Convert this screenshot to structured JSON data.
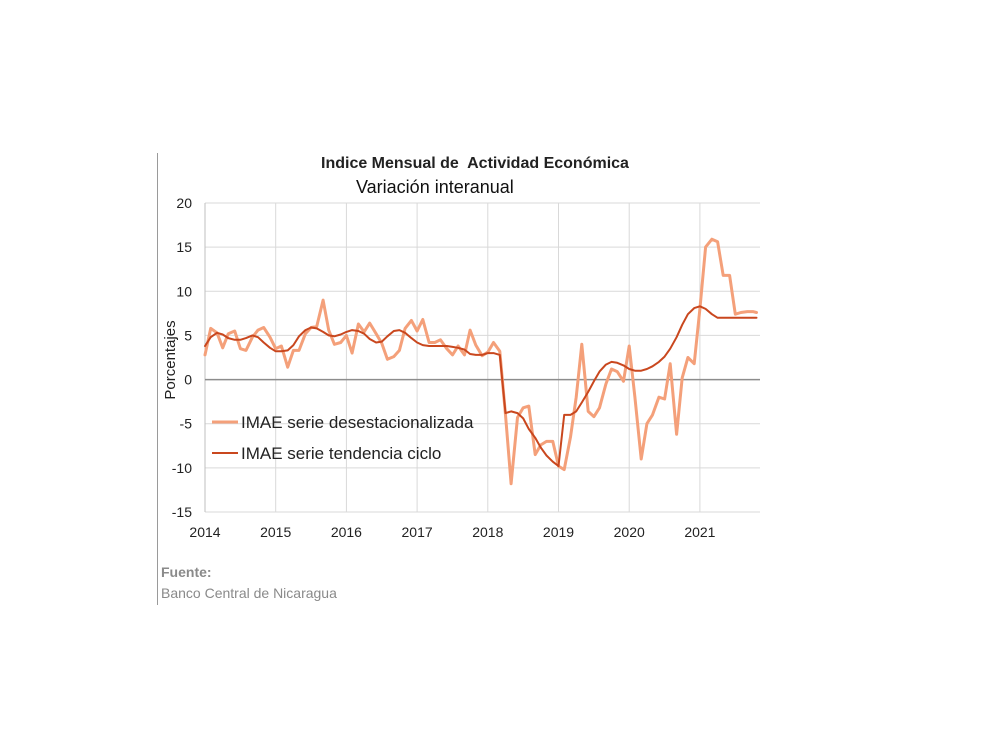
{
  "chart_data": {
    "type": "line",
    "title": "Indice Mensual de  Actividad Económica",
    "subtitle": "Variación interanual",
    "ylabel": "Porcentajes",
    "xlabel": "",
    "ylim": [
      -15,
      20
    ],
    "xlim": [
      2014.0,
      2021.85
    ],
    "yticks": [
      -15,
      -10,
      -5,
      0,
      5,
      10,
      15,
      20
    ],
    "xticks": [
      2014,
      2015,
      2016,
      2017,
      2018,
      2019,
      2020,
      2021
    ],
    "grid": "horizontal",
    "legend_position": "left-middle",
    "series": [
      {
        "name": "IMAE serie desestacionalizada",
        "color": "#f4a07a",
        "x": [
          2014.0,
          2014.08,
          2014.17,
          2014.25,
          2014.33,
          2014.42,
          2014.5,
          2014.58,
          2014.67,
          2014.75,
          2014.83,
          2014.92,
          2015.0,
          2015.08,
          2015.17,
          2015.25,
          2015.33,
          2015.42,
          2015.5,
          2015.58,
          2015.67,
          2015.75,
          2015.83,
          2015.92,
          2016.0,
          2016.08,
          2016.17,
          2016.25,
          2016.33,
          2016.42,
          2016.5,
          2016.58,
          2016.67,
          2016.75,
          2016.83,
          2016.92,
          2017.0,
          2017.08,
          2017.17,
          2017.25,
          2017.33,
          2017.42,
          2017.5,
          2017.58,
          2017.67,
          2017.75,
          2017.83,
          2017.92,
          2018.0,
          2018.08,
          2018.17,
          2018.25,
          2018.33,
          2018.42,
          2018.5,
          2018.58,
          2018.67,
          2018.75,
          2018.83,
          2018.92,
          2019.0,
          2019.08,
          2019.17,
          2019.25,
          2019.33,
          2019.42,
          2019.5,
          2019.58,
          2019.67,
          2019.75,
          2019.83,
          2019.92,
          2020.0,
          2020.08,
          2020.17,
          2020.25,
          2020.33,
          2020.42,
          2020.5,
          2020.58,
          2020.67,
          2020.75,
          2020.83,
          2020.92,
          2021.0,
          2021.08,
          2021.17,
          2021.25,
          2021.33,
          2021.42,
          2021.5,
          2021.58,
          2021.67,
          2021.75,
          2021.8
        ],
        "values": [
          2.8,
          5.8,
          5.3,
          3.6,
          5.2,
          5.5,
          3.5,
          3.3,
          4.8,
          5.6,
          5.9,
          4.8,
          3.5,
          3.8,
          1.4,
          3.3,
          3.3,
          5.2,
          5.9,
          6.0,
          9.0,
          5.6,
          4.0,
          4.2,
          5.0,
          3.0,
          6.3,
          5.4,
          6.4,
          5.2,
          4.1,
          2.3,
          2.6,
          3.3,
          5.8,
          6.7,
          5.5,
          6.8,
          4.2,
          4.2,
          4.5,
          3.5,
          2.8,
          3.8,
          2.8,
          5.6,
          3.9,
          2.7,
          3.1,
          4.2,
          3.2,
          -4.0,
          -11.8,
          -4.3,
          -3.2,
          -3.0,
          -8.5,
          -7.4,
          -7.0,
          -7.0,
          -9.8,
          -10.2,
          -6.5,
          -2.0,
          4.0,
          -3.6,
          -4.2,
          -3.2,
          -0.5,
          1.2,
          0.9,
          -0.2,
          3.8,
          -2.0,
          -9.0,
          -5.0,
          -4.0,
          -2.0,
          -2.2,
          1.8,
          -6.2,
          0.2,
          2.5,
          1.8,
          8.0,
          15.0,
          15.9,
          15.6,
          11.8,
          11.8,
          7.4,
          7.6,
          7.7,
          7.7,
          7.6
        ]
      },
      {
        "name": "IMAE serie  tendencia ciclo",
        "color": "#c9471e",
        "x": [
          2014.0,
          2014.08,
          2014.17,
          2014.25,
          2014.33,
          2014.42,
          2014.5,
          2014.58,
          2014.67,
          2014.75,
          2014.83,
          2014.92,
          2015.0,
          2015.08,
          2015.17,
          2015.25,
          2015.33,
          2015.42,
          2015.5,
          2015.58,
          2015.67,
          2015.75,
          2015.83,
          2015.92,
          2016.0,
          2016.08,
          2016.17,
          2016.25,
          2016.33,
          2016.42,
          2016.5,
          2016.58,
          2016.67,
          2016.75,
          2016.83,
          2016.92,
          2017.0,
          2017.08,
          2017.17,
          2017.25,
          2017.33,
          2017.42,
          2017.5,
          2017.58,
          2017.67,
          2017.75,
          2017.83,
          2017.92,
          2018.0,
          2018.08,
          2018.17,
          2018.25,
          2018.33,
          2018.42,
          2018.5,
          2018.58,
          2018.67,
          2018.75,
          2018.83,
          2018.92,
          2019.0,
          2019.08,
          2019.17,
          2019.25,
          2019.33,
          2019.42,
          2019.5,
          2019.58,
          2019.67,
          2019.75,
          2019.83,
          2019.92,
          2020.0,
          2020.08,
          2020.17,
          2020.25,
          2020.33,
          2020.42,
          2020.5,
          2020.58,
          2020.67,
          2020.75,
          2020.83,
          2020.92,
          2021.0,
          2021.08,
          2021.17,
          2021.25,
          2021.33,
          2021.42,
          2021.5,
          2021.58,
          2021.67,
          2021.75,
          2021.8
        ],
        "values": [
          3.8,
          4.8,
          5.3,
          5.1,
          4.7,
          4.5,
          4.5,
          4.7,
          5.0,
          4.8,
          4.2,
          3.6,
          3.2,
          3.2,
          3.3,
          3.9,
          4.9,
          5.6,
          5.9,
          5.8,
          5.4,
          5.0,
          4.9,
          5.1,
          5.4,
          5.6,
          5.5,
          5.2,
          4.6,
          4.2,
          4.3,
          4.9,
          5.5,
          5.6,
          5.3,
          4.7,
          4.2,
          3.9,
          3.8,
          3.8,
          3.8,
          3.8,
          3.7,
          3.6,
          3.4,
          2.9,
          2.8,
          2.8,
          3.0,
          3.0,
          2.8,
          -3.8,
          -3.6,
          -3.8,
          -4.4,
          -5.6,
          -6.6,
          -7.7,
          -8.6,
          -9.3,
          -9.8,
          -4.0,
          -4.0,
          -3.6,
          -2.6,
          -1.4,
          -0.2,
          0.9,
          1.7,
          2.0,
          1.9,
          1.6,
          1.2,
          1.0,
          1.0,
          1.2,
          1.5,
          2.0,
          2.6,
          3.5,
          4.8,
          6.2,
          7.4,
          8.1,
          8.3,
          8.0,
          7.4,
          7.0,
          7.0,
          7.0,
          7.0,
          7.0,
          7.0,
          7.0,
          7.0
        ]
      }
    ]
  },
  "source": {
    "label": "Fuente:",
    "text": "Banco Central de Nicaragua"
  }
}
